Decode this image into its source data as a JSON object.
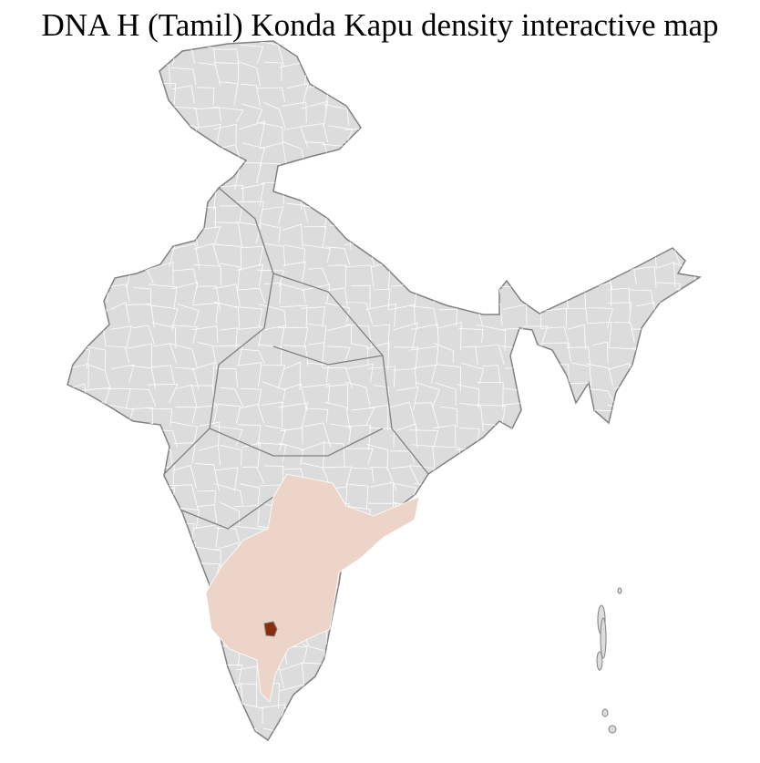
{
  "title": "DNA H (Tamil) Konda Kapu density interactive map",
  "colors": {
    "no_data": "#dcdcdc",
    "district_border": "#ffffff",
    "state_border": "#808080",
    "low_density": "#ecd5c8",
    "high_density": "#8b2c0a"
  }
}
